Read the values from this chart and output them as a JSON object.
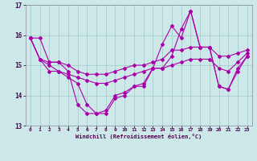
{
  "xlabel": "Windchill (Refroidissement éolien,°C)",
  "background_color": "#cce8e8",
  "grid_color": "#aacccc",
  "line_color": "#aa00aa",
  "x": [
    0,
    1,
    2,
    3,
    4,
    5,
    6,
    7,
    8,
    9,
    10,
    11,
    12,
    13,
    14,
    15,
    16,
    17,
    18,
    19,
    20,
    21,
    22,
    23
  ],
  "line1": [
    15.9,
    15.9,
    15.1,
    15.1,
    14.8,
    13.7,
    13.4,
    13.4,
    13.4,
    13.9,
    14.0,
    14.3,
    14.4,
    14.9,
    15.7,
    16.3,
    15.9,
    16.8,
    15.6,
    15.6,
    14.3,
    14.2,
    14.9,
    15.3
  ],
  "line2": [
    15.9,
    15.2,
    15.1,
    15.1,
    15.0,
    14.8,
    14.7,
    14.7,
    14.7,
    14.8,
    14.9,
    15.0,
    15.0,
    15.1,
    15.2,
    15.5,
    15.5,
    15.6,
    15.6,
    15.6,
    15.3,
    15.3,
    15.4,
    15.5
  ],
  "line3": [
    15.9,
    15.2,
    15.0,
    14.8,
    14.7,
    14.6,
    14.5,
    14.4,
    14.4,
    14.5,
    14.6,
    14.7,
    14.8,
    14.9,
    14.9,
    15.0,
    15.1,
    15.2,
    15.2,
    15.2,
    14.9,
    14.8,
    15.1,
    15.4
  ],
  "line4": [
    15.9,
    15.2,
    14.8,
    14.8,
    14.6,
    14.4,
    13.7,
    13.4,
    13.5,
    14.0,
    14.1,
    14.3,
    14.3,
    14.9,
    14.9,
    15.3,
    16.2,
    16.8,
    15.6,
    15.6,
    14.3,
    14.2,
    14.8,
    15.3
  ],
  "ylim": [
    13,
    17
  ],
  "xlim": [
    -0.5,
    23.5
  ],
  "yticks": [
    13,
    14,
    15,
    16,
    17
  ],
  "xticks": [
    0,
    1,
    2,
    3,
    4,
    5,
    6,
    7,
    8,
    9,
    10,
    11,
    12,
    13,
    14,
    15,
    16,
    17,
    18,
    19,
    20,
    21,
    22,
    23
  ]
}
